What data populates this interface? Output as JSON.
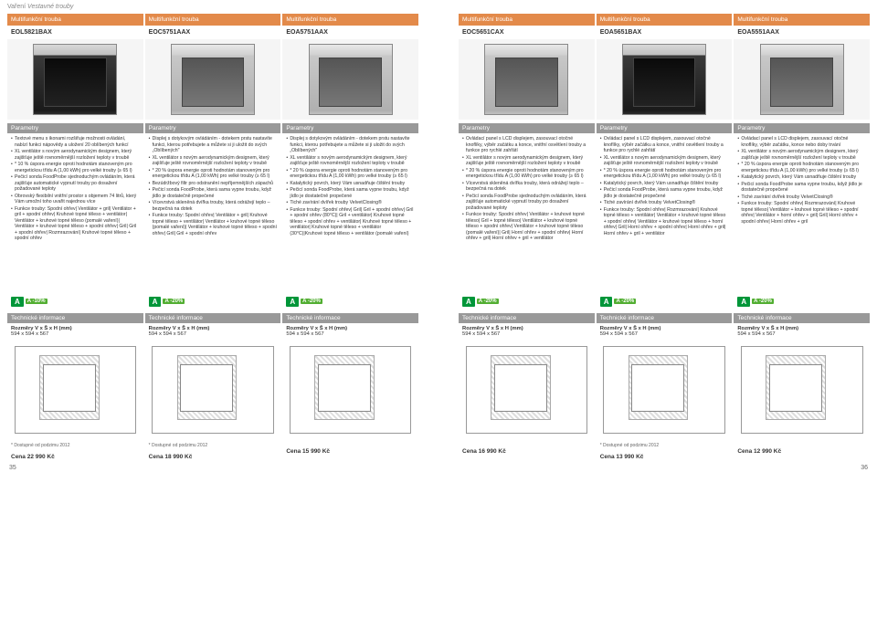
{
  "breadcrumb_left": "Vaření",
  "breadcrumb_right": " Vestavné trouby",
  "page_left": "35",
  "page_right": "36",
  "section_label": "Multifunkční trouba",
  "param_label": "Parametry",
  "tech_label": "Technické informace",
  "dims_label": "Rozměry V x Š x H (mm)",
  "products": [
    {
      "model": "EOL5821BAX",
      "dims": "594 x 594 x 567",
      "avail": "* Dostupné od podzimu 2012",
      "price": "Cena 22 990 Kč",
      "style": "dark",
      "energy": "A -10%",
      "params": [
        "Textové menu s ikonami rozšiřuje možnosti ovládání, nabízí funkci nápovědy a uložení 20 oblíbených funkcí",
        "XL ventilátor s novým aerodynamickým designem, který zajišťuje ještě rovnoměrnější rozložení teploty v troubě",
        "* 10 % úspora energie oproti hodnotám stanoveným pro energetickou třídu A (1,00 kWh) pro velké trouby (≥ 65 l)",
        "Pečicí sonda FoodProbe sjednoduchým ovládáním, která zajišťuje automatické vypnutí trouby po dosažení požadované teploty",
        "Obrovský flexibilní vnitřní prostor s objemem 74 litrů, který Vám umožní toho uvařit najednou více",
        "Funkce trouby: Spodní ohřev| Ventilátor + gril| Ventilátor + gril + spodní ohřev| Kruhové topné těleso + ventilátor| Ventilátor + kruhové topné těleso (pomalé vaření)| Ventilátor + kruhové topné těleso + spodní ohřev| Gril| Gril + spodní ohřev| Rozmrazování| Kruhové topné těleso + spodní ohřev"
      ]
    },
    {
      "model": "EOC5751AAX",
      "dims": "594 x 594 x 567",
      "avail": "* Dostupné od podzimu 2012",
      "price": "Cena 18 990 Kč",
      "style": "ss",
      "energy": "A -20%",
      "params": [
        "Displej s dotykovým ovládáním - dotekem prstu nastavíte funkci, kterou potřebujete a můžete si ji uložit do svých „Oblíbených\"",
        "XL ventilátor s novým aerodynamickým designem, který zajišťuje ještě rovnoměrnější rozložení teploty v troubě",
        "* 20 % úspora energie oproti hodnotám stanoveným pro energetickou třídu A (1,00 kWh) pro velké trouby (≥ 65 l)",
        "Bezúdržbový filtr pro odstranění nepříjemnějších zápachů",
        "Pečicí sonda FoodProbe, která sama vypne troubu, když jídlo je dostatečně propečené",
        "Vícevrstvá skleněná dvířka trouby, která odrážejí teplo – bezpečná na dotek",
        "Funkce trouby: Spodní ohřev| Ventilátor + gril| Kruhové topné těleso + ventilátor| Ventilátor + kruhové topné těleso (pomalé vaření)| Ventilátor + kruhové topné těleso + spodní ohřev| Gril| Gril + spodní ohřev"
      ]
    },
    {
      "model": "EOA5751AAX",
      "dims": "594 x 594 x 567",
      "avail": "",
      "price": "Cena 15 990 Kč",
      "style": "ss",
      "energy": "A -20%",
      "params": [
        "Displej s dotykovým ovládáním - dotekem prstu nastavíte funkci, kterou potřebujete a můžete si ji uložit do svých „Oblíbených\"",
        "XL ventilátor s novým aerodynamickým designem, který zajišťuje ještě rovnoměrnější rozložení teploty v troubě",
        "* 20 % úspora energie oproti hodnotám stanoveným pro energetickou třídu A (1,00 kWh) pro velké trouby (≥ 65 l)",
        "Katalytický povrch, který Vám usnadňuje čištění trouby",
        "Pečicí sonda FoodProbe, která sama vypne troubu, když jídlo je dostatečně propečené",
        "Tiché zavírání dvířek trouby VelvetClosing®",
        "Funkce trouby: Spodní ohřev| Gril| Gril + spodní ohřev| Gril + spodní ohřev (80°C)| Gril + ventilátor| Kruhové topné těleso + spodní ohřev + ventilátor| Kruhové topné těleso + ventilátor| Kruhové topné těleso + ventilátor (30°C)|Kruhové topné těleso + ventilátor (pomalé vaření)"
      ]
    },
    {
      "model": "EOC5651CAX",
      "dims": "594 x 594 x 567",
      "avail": "",
      "price": "Cena 16 990 Kč",
      "style": "ss",
      "energy": "A -20%",
      "params": [
        "Ovládací panel s LCD displejem, zasouvací otočné knoflíky, výběr začátku a konce, vnitřní osvětlení trouby a funkce pro rychlé zahřátí",
        "XL ventilátor s novým aerodynamickým designem, který zajišťuje ještě rovnoměrnější rozložení teploty v troubě",
        "* 20 % úspora energie oproti hodnotám stanoveným pro energetickou třídu A (1,00 kWh) pro velké trouby (≥ 65 l)",
        "Vícevrstvá skleněná dvířka trouby, která odrážejí teplo – bezpečná na dotek",
        "Pečicí sonda FoodProbe sjednoduchým ovládáním, která zajišťuje automatické vypnutí trouby po dosažení požadované teploty",
        "Funkce trouby: Spodní ohřev| Ventilátor + kruhové topné těleso| Gril + topné těleso| Ventilátor + kruhové topné těleso + spodní ohřev| Ventilátor + kruhové topné těleso (pomalé vaření)| Gril| Horní ohřev + spodní ohřev| Horní ohřev + gril| Horní ohřev + gril + ventilátor"
      ]
    },
    {
      "model": "EOA5651BAX",
      "dims": "594 x 594 x 567",
      "avail": "* Dostupné od podzimu 2012",
      "price": "Cena 13 990 Kč",
      "style": "dark",
      "energy": "A -20%",
      "params": [
        "Ovládací panel s LCD displejem, zasouvací otočné knoflíky, výběr začátku a konce, vnitřní osvětlení trouby a funkce pro rychlé zahřátí",
        "XL ventilátor s novým aerodynamickým designem, který zajišťuje ještě rovnoměrnější rozložení teploty v troubě",
        "* 20 % úspora energie oproti hodnotám stanoveným pro energetickou třídu A (1,00 kWh) pro velké trouby (≥ 65 l)",
        "Katalytický povrch, který Vám usnadňuje čištění trouby",
        "Pečicí sonda FoodProbe, která sama vypne troubu, když jídlo je dostatečně propečené",
        "Tiché zavírání dvířek trouby VelvetClosing®",
        "Funkce trouby: Spodní ohřev| Rozmrazování| Kruhové topné těleso + ventilátor| Ventilátor + kruhové topné těleso + spodní ohřev| Ventilátor + kruhové topné těleso + horní ohřev| Gril| Horní ohřev + spodní ohřev| Horní ohřev + gril| Horní ohřev + gril + ventilátor"
      ]
    },
    {
      "model": "EOA5551AAX",
      "dims": "594 x 594 x 567",
      "avail": "",
      "price": "Cena 12 990 Kč",
      "style": "ss",
      "energy": "A -20%",
      "params": [
        "Ovládací panel s LCD displejem, zasouvací otočné knoflíky, výběr začátku, konce nebo doby trvání",
        "XL ventilátor s novým aerodynamickým designem, který zajišťuje ještě rovnoměrnější rozložení teploty v troubě",
        "* 20 % úspora energie oproti hodnotám stanoveným pro energetickou třídu A (1,00 kWh) pro velké trouby (≥ 65 l)",
        "Katalytický povrch, který Vám usnadňuje čištění trouby",
        "Pečicí sonda FoodProbe sama vypne troubu, když jídlo je dostatečně propečené",
        "Tiché zavírání dvířek trouby VelvetClosing®",
        "Funkce trouby: Spodní ohřev| Rozmrazování| Kruhové topné těleso| Ventilátor + kruhové topné těleso + spodní ohřev| Ventilátor + horní ohřev + gril| Gril| Horní ohřev + spodní ohřev| Horní ohřev + gril"
      ]
    }
  ]
}
